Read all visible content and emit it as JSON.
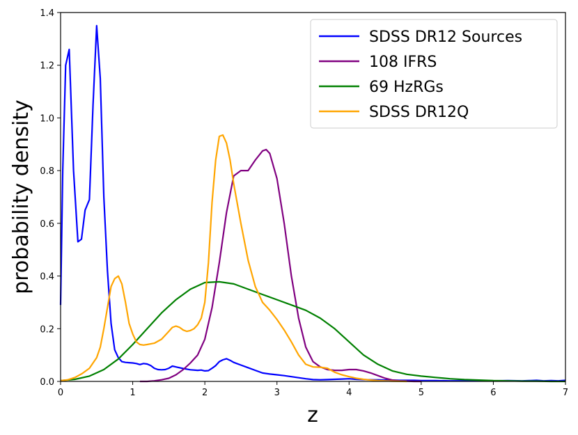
{
  "chart_data": {
    "type": "line",
    "title": "",
    "xlabel": "z",
    "ylabel": "probability density",
    "xlim": [
      0,
      7
    ],
    "ylim": [
      0,
      1.4
    ],
    "xticks": [
      0,
      1,
      2,
      3,
      4,
      5,
      6,
      7
    ],
    "yticks": [
      0.0,
      0.2,
      0.4,
      0.6,
      0.8,
      1.0,
      1.2,
      1.4
    ],
    "grid": false,
    "legend_position": "top-right",
    "series": [
      {
        "name": "SDSS DR12 Sources",
        "color": "#0000ff",
        "x": [
          0,
          0.03,
          0.07,
          0.12,
          0.18,
          0.24,
          0.29,
          0.34,
          0.4,
          0.45,
          0.5,
          0.55,
          0.6,
          0.65,
          0.7,
          0.75,
          0.8,
          0.85,
          0.9,
          0.95,
          1.0,
          1.05,
          1.1,
          1.15,
          1.2,
          1.25,
          1.3,
          1.35,
          1.4,
          1.45,
          1.5,
          1.55,
          1.6,
          1.7,
          1.8,
          1.9,
          1.95,
          2.0,
          2.05,
          2.1,
          2.15,
          2.2,
          2.25,
          2.3,
          2.35,
          2.4,
          2.5,
          2.6,
          2.7,
          2.8,
          2.9,
          3.0,
          3.1,
          3.2,
          3.3,
          3.4,
          3.5,
          3.6,
          3.7,
          3.8,
          3.9,
          4.0,
          4.1,
          4.2,
          4.3,
          4.4,
          4.5,
          4.6,
          4.7,
          4.8,
          4.9,
          5.0,
          5.2,
          5.4,
          5.6,
          5.8,
          6.0,
          6.2,
          6.4,
          6.5,
          6.6,
          6.7,
          6.8,
          6.9,
          7.0
        ],
        "values": [
          0.29,
          0.8,
          1.2,
          1.26,
          0.8,
          0.53,
          0.54,
          0.65,
          0.69,
          1.05,
          1.35,
          1.15,
          0.7,
          0.42,
          0.22,
          0.12,
          0.09,
          0.075,
          0.072,
          0.071,
          0.07,
          0.068,
          0.064,
          0.068,
          0.066,
          0.06,
          0.05,
          0.045,
          0.044,
          0.045,
          0.05,
          0.058,
          0.055,
          0.049,
          0.044,
          0.042,
          0.043,
          0.04,
          0.041,
          0.05,
          0.06,
          0.075,
          0.082,
          0.086,
          0.08,
          0.072,
          0.062,
          0.052,
          0.042,
          0.032,
          0.028,
          0.025,
          0.022,
          0.018,
          0.014,
          0.01,
          0.007,
          0.006,
          0.007,
          0.008,
          0.009,
          0.01,
          0.008,
          0.007,
          0.006,
          0.006,
          0.005,
          0.005,
          0.004,
          0.004,
          0.004,
          0.003,
          0.003,
          0.002,
          0.002,
          0.002,
          0.002,
          0.003,
          0.002,
          0.003,
          0.004,
          0.002,
          0.003,
          0.002,
          0.004
        ]
      },
      {
        "name": "108 IFRS",
        "color": "#800080",
        "x": [
          1.1,
          1.2,
          1.3,
          1.4,
          1.5,
          1.6,
          1.7,
          1.8,
          1.9,
          2.0,
          2.1,
          2.2,
          2.3,
          2.4,
          2.5,
          2.6,
          2.7,
          2.8,
          2.85,
          2.9,
          3.0,
          3.1,
          3.2,
          3.3,
          3.4,
          3.5,
          3.6,
          3.7,
          3.8,
          3.9,
          4.0,
          4.1,
          4.2,
          4.3,
          4.4,
          4.5,
          4.6,
          4.7,
          4.8,
          4.9,
          5.0
        ],
        "values": [
          0.0,
          0.0,
          0.002,
          0.006,
          0.012,
          0.025,
          0.045,
          0.07,
          0.1,
          0.16,
          0.28,
          0.45,
          0.64,
          0.78,
          0.8,
          0.8,
          0.84,
          0.875,
          0.88,
          0.865,
          0.77,
          0.6,
          0.4,
          0.24,
          0.13,
          0.075,
          0.055,
          0.045,
          0.042,
          0.042,
          0.045,
          0.045,
          0.04,
          0.032,
          0.022,
          0.012,
          0.005,
          0.002,
          0.001,
          0.0,
          0.0
        ]
      },
      {
        "name": "69 HzRGs",
        "color": "#008000",
        "x": [
          0,
          0.2,
          0.4,
          0.6,
          0.8,
          1.0,
          1.2,
          1.4,
          1.6,
          1.8,
          2.0,
          2.2,
          2.4,
          2.6,
          2.8,
          3.0,
          3.2,
          3.4,
          3.6,
          3.8,
          4.0,
          4.2,
          4.4,
          4.6,
          4.8,
          5.0,
          5.2,
          5.4,
          5.6,
          5.8,
          6.0,
          6.2,
          6.4,
          6.6,
          6.8,
          7.0
        ],
        "values": [
          0.003,
          0.008,
          0.02,
          0.045,
          0.085,
          0.14,
          0.2,
          0.26,
          0.31,
          0.35,
          0.375,
          0.378,
          0.37,
          0.35,
          0.33,
          0.31,
          0.29,
          0.27,
          0.24,
          0.2,
          0.15,
          0.1,
          0.065,
          0.04,
          0.027,
          0.02,
          0.015,
          0.01,
          0.007,
          0.005,
          0.003,
          0.002,
          0.001,
          0.001,
          0.0,
          0.0
        ]
      },
      {
        "name": "SDSS DR12Q",
        "color": "#ffa500",
        "x": [
          0,
          0.1,
          0.2,
          0.3,
          0.4,
          0.5,
          0.55,
          0.6,
          0.65,
          0.7,
          0.75,
          0.8,
          0.85,
          0.9,
          0.95,
          1.0,
          1.05,
          1.1,
          1.15,
          1.2,
          1.3,
          1.4,
          1.5,
          1.55,
          1.6,
          1.65,
          1.7,
          1.75,
          1.8,
          1.85,
          1.9,
          1.95,
          2.0,
          2.05,
          2.1,
          2.15,
          2.2,
          2.25,
          2.3,
          2.35,
          2.4,
          2.5,
          2.6,
          2.7,
          2.8,
          2.9,
          3.0,
          3.1,
          3.2,
          3.3,
          3.4,
          3.5,
          3.6,
          3.7,
          3.8,
          3.9,
          4.0,
          4.1,
          4.2,
          4.3,
          4.4,
          4.5,
          4.6,
          4.8
        ],
        "values": [
          0.003,
          0.006,
          0.015,
          0.03,
          0.05,
          0.09,
          0.13,
          0.2,
          0.28,
          0.36,
          0.39,
          0.4,
          0.37,
          0.3,
          0.22,
          0.18,
          0.15,
          0.14,
          0.138,
          0.14,
          0.145,
          0.16,
          0.19,
          0.205,
          0.21,
          0.205,
          0.195,
          0.19,
          0.193,
          0.2,
          0.215,
          0.24,
          0.3,
          0.45,
          0.68,
          0.84,
          0.93,
          0.935,
          0.905,
          0.84,
          0.75,
          0.6,
          0.46,
          0.36,
          0.3,
          0.27,
          0.235,
          0.195,
          0.15,
          0.1,
          0.065,
          0.055,
          0.054,
          0.05,
          0.035,
          0.025,
          0.018,
          0.012,
          0.008,
          0.005,
          0.003,
          0.002,
          0.001,
          0.0
        ]
      }
    ]
  }
}
